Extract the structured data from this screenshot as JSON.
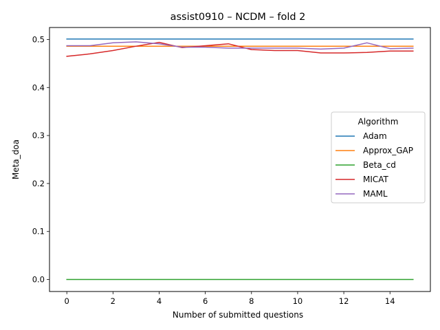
{
  "chart_data": {
    "type": "line",
    "title": "assist0910 – NCDM – fold 2",
    "xlabel": "Number of submitted questions",
    "ylabel": "Meta_doa",
    "xlim": [
      -0.75,
      15.75
    ],
    "ylim": [
      -0.025,
      0.525
    ],
    "xticks": [
      0,
      2,
      4,
      6,
      8,
      10,
      12,
      14
    ],
    "yticks": [
      0.0,
      0.1,
      0.2,
      0.3,
      0.4,
      0.5
    ],
    "ytick_labels": [
      "0.0",
      "0.1",
      "0.2",
      "0.3",
      "0.4",
      "0.5"
    ],
    "x": [
      0,
      1,
      2,
      3,
      4,
      5,
      6,
      7,
      8,
      9,
      10,
      11,
      12,
      13,
      14,
      15
    ],
    "grid": false,
    "legend": {
      "title": "Algorithm",
      "placement": "center-right"
    },
    "series": [
      {
        "name": "Adam",
        "color": "#1f77b4",
        "values": [
          0.501,
          0.501,
          0.501,
          0.501,
          0.501,
          0.501,
          0.501,
          0.501,
          0.501,
          0.501,
          0.501,
          0.501,
          0.501,
          0.501,
          0.501,
          0.501
        ]
      },
      {
        "name": "Approx_GAP",
        "color": "#ff7f0e",
        "values": [
          0.486,
          0.486,
          0.486,
          0.486,
          0.486,
          0.486,
          0.486,
          0.486,
          0.486,
          0.486,
          0.486,
          0.486,
          0.486,
          0.486,
          0.486,
          0.486
        ]
      },
      {
        "name": "Beta_cd",
        "color": "#2ca02c",
        "values": [
          0.0,
          0.0,
          0.0,
          0.0,
          0.0,
          0.0,
          0.0,
          0.0,
          0.0,
          0.0,
          0.0,
          0.0,
          0.0,
          0.0,
          0.0,
          0.0
        ]
      },
      {
        "name": "MICAT",
        "color": "#d62728",
        "values": [
          0.465,
          0.47,
          0.477,
          0.486,
          0.494,
          0.483,
          0.487,
          0.491,
          0.479,
          0.477,
          0.477,
          0.472,
          0.472,
          0.473,
          0.476,
          0.476
        ]
      },
      {
        "name": "MAML",
        "color": "#9467bd",
        "values": [
          0.487,
          0.487,
          0.493,
          0.495,
          0.491,
          0.484,
          0.484,
          0.482,
          0.482,
          0.482,
          0.482,
          0.48,
          0.482,
          0.493,
          0.481,
          0.482
        ]
      }
    ]
  }
}
